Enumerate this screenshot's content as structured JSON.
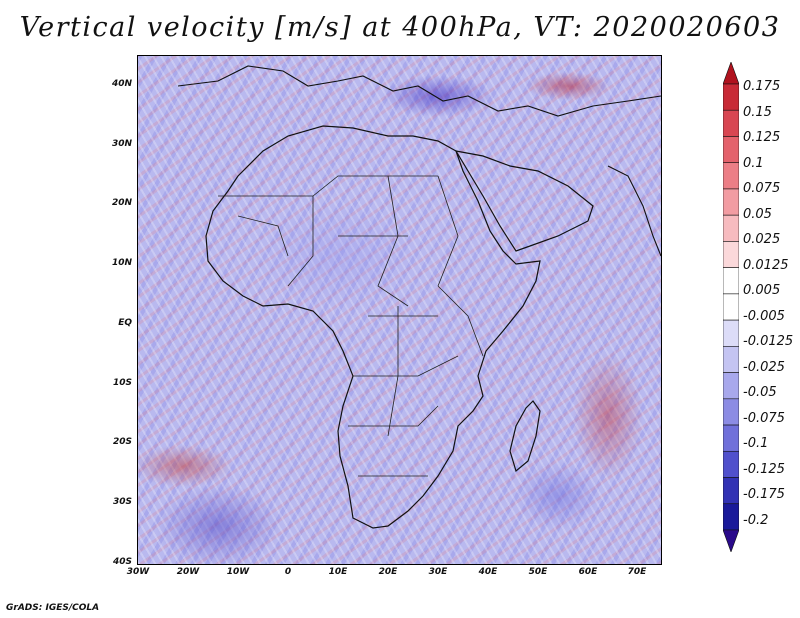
{
  "title": "Vertical velocity [m/s] at 400hPa, VT: 2020020603",
  "map": {
    "variable": "Vertical velocity",
    "units": "m/s",
    "level": "400hPa",
    "valid_time": "2020020603",
    "lat_labels": [
      "40N",
      "30N",
      "20N",
      "10N",
      "EQ",
      "10S",
      "20S",
      "30S",
      "40S"
    ],
    "lon_labels": [
      "30W",
      "20W",
      "10W",
      "0",
      "10E",
      "20E",
      "30E",
      "40E",
      "50E",
      "60E",
      "70E"
    ]
  },
  "colorbar": {
    "levels": [
      "0.175",
      "0.15",
      "0.125",
      "0.1",
      "0.075",
      "0.05",
      "0.025",
      "0.0125",
      "0.005",
      "-0.005",
      "-0.0125",
      "-0.025",
      "-0.05",
      "-0.075",
      "-0.1",
      "-0.125",
      "-0.175",
      "-0.2"
    ],
    "colors": [
      "#b0121e",
      "#c82a36",
      "#d84652",
      "#e4626c",
      "#ec7e86",
      "#f29ca2",
      "#f7bbbf",
      "#fbd8da",
      "#ffffff",
      "#ffffff",
      "#dcdcf8",
      "#c4c4f2",
      "#a8a8ec",
      "#8c8ce4",
      "#7070da",
      "#5050cc",
      "#3232b4",
      "#1a1a9a",
      "#2a0a8a"
    ]
  },
  "footer": "GrADS: IGES/COLA"
}
